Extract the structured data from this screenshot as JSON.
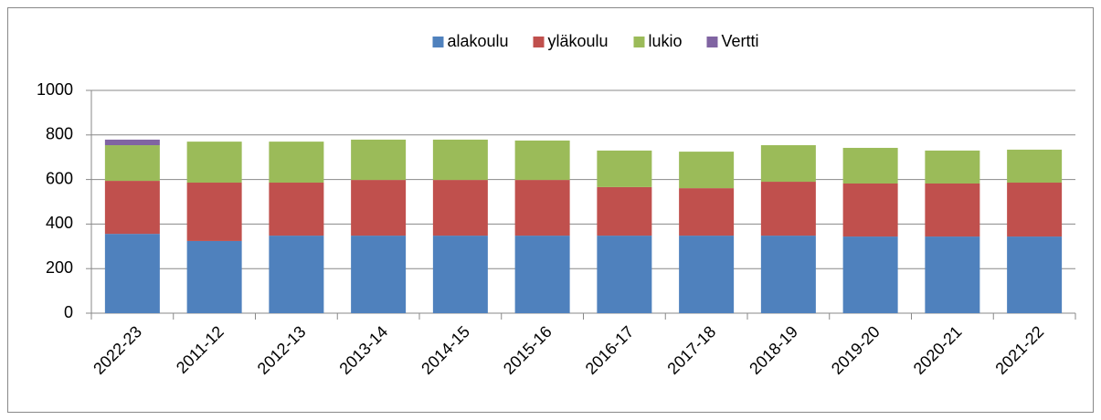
{
  "chart_data": {
    "type": "stacked_bar",
    "categories": [
      "2022-23",
      "2011-12",
      "2012-13",
      "2013-14",
      "2014-15",
      "2015-16",
      "2016-17",
      "2017-18",
      "2018-19",
      "2019-20",
      "2020-21",
      "2021-22"
    ],
    "series": [
      {
        "name": "alakoulu",
        "color": "#4f81bd",
        "values": [
          356,
          324,
          348,
          348,
          348,
          348,
          348,
          348,
          348,
          344,
          344,
          344
        ]
      },
      {
        "name": "yläkoulu",
        "color": "#c0504d",
        "values": [
          238,
          262,
          238,
          250,
          250,
          250,
          218,
          213,
          242,
          238,
          238,
          242
        ]
      },
      {
        "name": "lukio",
        "color": "#9bbb59",
        "values": [
          160,
          184,
          184,
          181,
          181,
          177,
          164,
          164,
          164,
          160,
          148,
          148
        ]
      },
      {
        "name": "Vertti",
        "color": "#8064a2",
        "values": [
          25,
          0,
          0,
          0,
          0,
          0,
          0,
          0,
          0,
          0,
          0,
          0
        ]
      }
    ],
    "ylim": [
      0,
      1000
    ],
    "yticks": [
      0,
      200,
      400,
      600,
      800,
      1000
    ],
    "grid": true,
    "legend": "top"
  }
}
